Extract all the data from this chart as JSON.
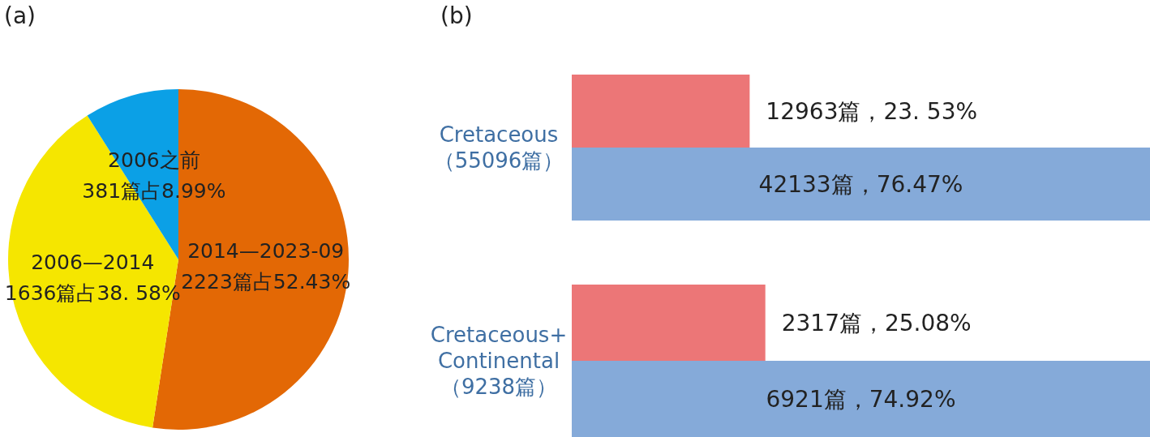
{
  "chart_data": [
    {
      "type": "pie",
      "title": "(a)",
      "categories": [
        "2014—2023-09",
        "2006—2014",
        "2006之前"
      ],
      "values": [
        2223,
        1636,
        381
      ],
      "colors": [
        "#e36805",
        "#f5e600",
        "#0ba0e6"
      ],
      "value_labels": [
        "2223篇占52.43%",
        "1636篇占38. 58%",
        "381篇占8.99%"
      ]
    },
    {
      "type": "bar",
      "title": "(b)",
      "orientation": "horizontal",
      "tick_labels": "y",
      "categories": [
        "Cretaceous\n（55096篇）"
      ],
      "series": [
        {
          "color": "#ec7677",
          "values": [
            12963
          ],
          "value_labels": [
            "12963篇，23. 53%"
          ]
        },
        {
          "color": "#85aad9",
          "values": [
            42133
          ],
          "value_labels": [
            "42133篇，76.47%"
          ]
        }
      ]
    },
    {
      "type": "bar",
      "orientation": "horizontal",
      "tick_labels": "y",
      "categories": [
        "Cretaceous+\nContinental\n（9238篇）"
      ],
      "series": [
        {
          "color": "#ec7677",
          "values": [
            2317
          ],
          "value_labels": [
            "2317篇，25.08%"
          ]
        },
        {
          "color": "#85aad9",
          "values": [
            6921
          ],
          "value_labels": [
            "6921篇，74.92%"
          ]
        }
      ]
    }
  ]
}
